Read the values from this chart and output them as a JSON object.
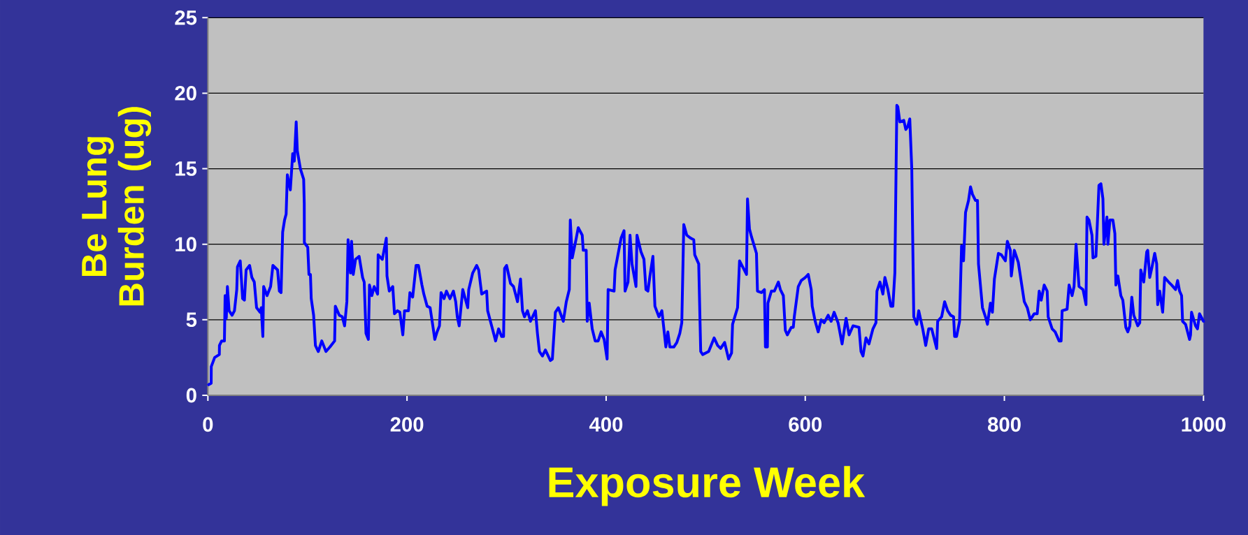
{
  "chart_data": {
    "type": "line",
    "xlabel": "Exposure Week",
    "ylabel": "Be Lung Burden (ug)",
    "xlim": [
      0,
      1000
    ],
    "ylim": [
      0,
      25
    ],
    "xticks": [
      0,
      200,
      400,
      600,
      800,
      1000
    ],
    "yticks": [
      0,
      5,
      10,
      15,
      20,
      25
    ],
    "grid": "y",
    "series": [
      {
        "color": "#0000ff",
        "x": [
          0.7,
          3.3,
          3.4,
          6.8,
          11.5,
          11.6,
          13.8,
          16.6,
          17.3,
          18.5,
          19.6,
          21.3,
          24.3,
          26.7,
          29,
          29.7,
          32.5,
          34.9,
          36.7,
          38.4,
          41.9,
          44.2,
          46.6,
          48.9,
          52.4,
          53.6,
          55.2,
          56,
          59.4,
          63,
          65.3,
          70,
          71.8,
          73.5,
          75.1,
          77,
          78.6,
          79.8,
          82.8,
          85.2,
          86.8,
          88.7,
          89.8,
          92.9,
          96.2,
          96.8,
          96.9,
          100.3,
          101.5,
          103,
          103.8,
          106.2,
          108,
          110.9,
          114.4,
          118.6,
          122.6,
          127.3,
          128,
          132,
          135,
          137.3,
          139.6,
          140.8,
          143.2,
          144.3,
          146,
          148.3,
          151.9,
          155.4,
          157,
          158.8,
          161.2,
          162.3,
          164.7,
          167,
          170.5,
          171,
          175.2,
          179.2,
          179.9,
          182.2,
          185.7,
          187.4,
          190.4,
          192.8,
          195.8,
          197.5,
          201.5,
          202.9,
          205.7,
          209.1,
          211.5,
          215,
          216.9,
          220.2,
          223.2,
          225.5,
          227.9,
          230.2,
          232.6,
          234.2,
          237.2,
          239.6,
          243.1,
          246.6,
          248.9,
          250.5,
          252.4,
          256,
          261,
          262,
          266,
          270,
          272,
          275,
          280,
          281,
          285,
          289,
          292,
          295,
          297,
          298,
          300,
          304,
          307,
          311,
          314,
          316,
          318,
          321,
          324,
          329,
          331,
          333,
          336,
          339,
          344,
          346,
          349,
          352,
          357,
          360,
          363,
          364,
          366,
          370,
          372,
          376,
          377,
          380,
          381,
          383,
          386,
          389,
          392,
          395,
          398,
          401,
          402,
          408,
          409,
          411,
          415,
          418,
          419,
          422,
          424,
          426,
          430,
          431,
          435,
          438,
          440,
          442,
          444,
          447,
          449,
          453,
          456,
          460,
          462,
          464,
          468,
          471,
          474,
          476,
          478,
          481,
          485,
          488,
          489,
          493,
          495,
          497,
          503,
          508.5,
          512,
          515,
          519,
          523,
          526,
          527,
          532,
          534,
          538,
          541,
          542,
          544,
          546,
          551,
          552,
          556,
          559,
          560,
          562,
          562.5,
          566,
          569,
          573,
          575,
          578,
          580,
          582,
          586,
          588,
          589,
          593,
          596,
          600,
          603,
          606,
          607,
          610,
          613,
          616,
          619,
          623,
          626,
          629,
          633,
          637,
          641,
          644,
          648,
          654,
          656,
          658,
          661,
          664,
          668,
          671,
          672,
          675,
          678,
          680,
          683,
          686,
          688,
          690,
          692,
          693,
          695,
          699,
          701,
          703,
          705,
          707,
          709,
          712,
          714,
          718,
          721,
          724,
          727,
          732,
          733,
          737,
          740,
          743,
          746,
          749,
          750,
          752,
          755,
          757,
          759,
          761,
          764,
          766,
          768,
          771,
          773,
          774,
          778,
          781,
          783,
          786,
          788,
          790,
          794,
          797,
          801,
          803,
          806,
          807,
          810,
          814,
          817,
          820,
          823,
          826,
          830,
          833,
          835,
          837,
          840,
          843,
          844,
          848,
          851,
          855,
          857,
          858,
          863,
          865,
          868,
          870,
          872,
          875,
          879,
          882,
          883,
          885,
          888,
          889,
          892,
          895,
          897,
          899,
          900,
          903,
          904,
          906,
          909,
          911,
          912,
          914,
          917,
          919,
          922,
          924,
          926,
          928,
          930,
          934,
          936,
          937,
          940,
          943,
          944,
          946,
          948,
          951,
          953,
          954,
          956,
          959,
          961,
          965,
          968,
          972,
          974,
          976,
          978,
          979,
          982,
          986,
          987,
          988,
          992,
          994,
          996,
          1000
        ],
        "values": [
          0.7,
          0.8,
          1.9,
          2.5,
          2.7,
          3.3,
          3.6,
          3.6,
          6.6,
          5.1,
          7.2,
          5.6,
          5.3,
          5.6,
          7.0,
          8.5,
          8.9,
          6.4,
          6.3,
          8.3,
          8.6,
          7.8,
          7.5,
          5.8,
          5.5,
          5.8,
          3.9,
          7.2,
          6.6,
          7.2,
          8.6,
          8.3,
          6.9,
          6.8,
          10.8,
          11.6,
          12.0,
          14.6,
          13.6,
          16.0,
          15.5,
          18.1,
          16.2,
          15.0,
          14.3,
          12.7,
          10.1,
          9.8,
          8.0,
          8.0,
          6.4,
          5.3,
          3.3,
          2.9,
          3.6,
          2.9,
          3.2,
          3.6,
          5.9,
          5.3,
          5.2,
          4.6,
          6.2,
          10.3,
          8.1,
          10.2,
          8.0,
          9.0,
          9.2,
          7.8,
          7.5,
          4.1,
          3.7,
          7.3,
          6.6,
          7.2,
          6.7,
          9.3,
          9.0,
          10.4,
          7.9,
          6.9,
          7.2,
          5.4,
          5.6,
          5.5,
          4.0,
          5.6,
          5.6,
          6.8,
          6.5,
          8.6,
          8.6,
          7.3,
          6.7,
          5.9,
          5.8,
          4.8,
          3.7,
          4.2,
          4.6,
          6.8,
          6.4,
          6.9,
          6.4,
          6.9,
          6.2,
          5.2,
          4.6,
          7.0,
          5.8,
          7.0,
          8.1,
          8.6,
          8.3,
          6.7,
          6.9,
          5.6,
          4.6,
          3.6,
          4.4,
          3.9,
          3.9,
          8.4,
          8.6,
          7.4,
          7.2,
          6.2,
          7.7,
          5.6,
          5.2,
          5.6,
          4.9,
          5.6,
          4.1,
          2.9,
          2.6,
          3.0,
          2.3,
          2.4,
          5.5,
          5.8,
          4.9,
          6.2,
          7.0,
          11.6,
          9.1,
          10.4,
          11.1,
          10.6,
          9.6,
          9.6,
          4.9,
          6.1,
          4.4,
          3.6,
          3.6,
          4.2,
          3.7,
          2.4,
          7.0,
          6.9,
          8.3,
          9.0,
          10.4,
          10.9,
          6.9,
          7.5,
          10.6,
          8.7,
          7.2,
          10.6,
          9.5,
          9.0,
          7.0,
          6.9,
          7.9,
          9.2,
          5.9,
          5.2,
          5.6,
          3.2,
          4.2,
          3.2,
          3.2,
          3.5,
          4.1,
          4.8,
          11.3,
          10.6,
          10.4,
          10.3,
          9.3,
          8.7,
          2.9,
          2.7,
          2.9,
          3.8,
          3.3,
          3.1,
          3.5,
          2.4,
          2.8,
          4.7,
          5.8,
          8.9,
          8.4,
          8.0,
          13.0,
          11.0,
          10.5,
          9.4,
          6.9,
          6.8,
          7.0,
          3.2,
          3.2,
          6.1,
          6.9,
          6.9,
          7.5,
          7.0,
          6.6,
          4.3,
          4.0,
          4.5,
          4.5,
          5.2,
          7.2,
          7.6,
          7.8,
          8.0,
          7.0,
          5.9,
          4.9,
          4.2,
          5.0,
          4.8,
          5.3,
          4.9,
          5.5,
          4.8,
          3.4,
          5.1,
          4.0,
          4.6,
          4.5,
          2.9,
          2.6,
          3.8,
          3.4,
          4.4,
          4.8,
          6.9,
          7.5,
          6.7,
          7.8,
          7.0,
          5.9,
          5.9,
          8.1,
          19.2,
          19.1,
          18.1,
          18.2,
          17.6,
          17.8,
          18.3,
          15.0,
          5.2,
          4.7,
          5.6,
          4.4,
          3.3,
          4.4,
          4.4,
          3.1,
          4.9,
          5.2,
          6.2,
          5.6,
          5.3,
          5.2,
          3.9,
          3.9,
          4.9,
          9.9,
          8.9,
          12.1,
          12.9,
          13.8,
          13.3,
          12.9,
          12.9,
          8.7,
          5.8,
          5.2,
          4.7,
          6.1,
          5.5,
          7.7,
          9.4,
          9.3,
          8.9,
          10.2,
          9.6,
          7.9,
          9.6,
          8.8,
          7.5,
          6.2,
          5.8,
          5.0,
          5.4,
          5.4,
          6.9,
          6.3,
          7.3,
          6.9,
          5.2,
          4.4,
          4.2,
          3.6,
          3.6,
          5.6,
          5.7,
          7.3,
          6.6,
          7.2,
          10.0,
          7.2,
          7.0,
          6.0,
          11.8,
          11.6,
          10.6,
          9.1,
          9.2,
          13.9,
          14.0,
          13.0,
          10.0,
          11.8,
          10.0,
          11.6,
          11.6,
          10.7,
          7.3,
          7.9,
          6.6,
          6.3,
          4.5,
          4.2,
          4.6,
          6.5,
          5.3,
          4.6,
          4.8,
          8.3,
          7.5,
          9.5,
          9.6,
          7.8,
          8.4,
          9.4,
          8.7,
          6.0,
          6.9,
          5.5,
          7.8,
          7.5,
          7.3,
          7.0,
          7.6,
          6.9,
          6.6,
          4.9,
          4.7,
          3.7,
          4.0,
          5.5,
          4.6,
          4.4,
          5.4,
          4.9
        ]
      }
    ]
  }
}
